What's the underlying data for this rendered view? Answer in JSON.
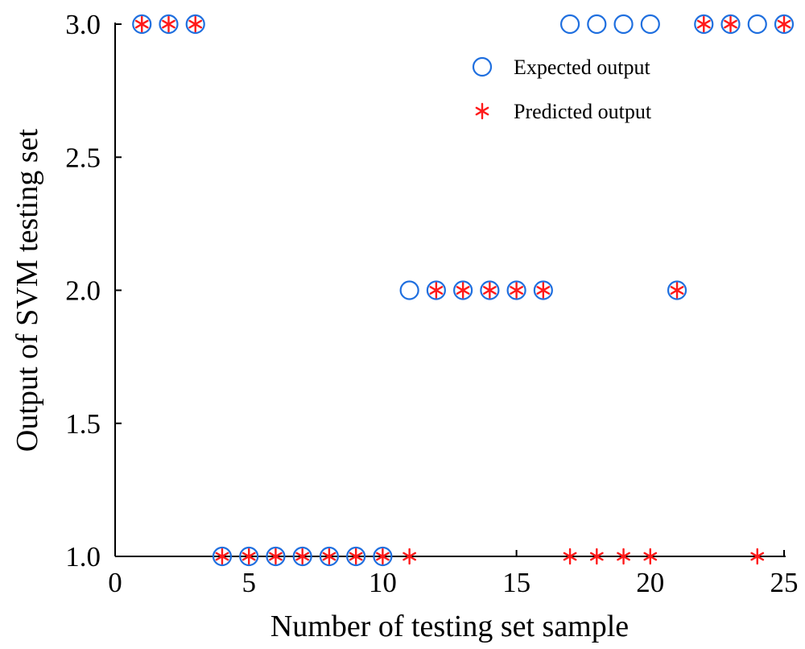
{
  "chart_data": {
    "type": "scatter",
    "xlabel": "Number of testing set sample",
    "ylabel": "Output of SVM testing set",
    "xlim": [
      0,
      25
    ],
    "ylim": [
      1.0,
      3.0
    ],
    "x_ticks": [
      0,
      5,
      10,
      15,
      20,
      25
    ],
    "x_tick_labels": [
      "0",
      "5",
      "10",
      "15",
      "20",
      "25"
    ],
    "y_ticks": [
      1.0,
      1.5,
      2.0,
      2.5,
      3.0
    ],
    "y_tick_labels": [
      "1.0",
      "1.5",
      "2.0",
      "2.5",
      "3.0"
    ],
    "grid": false,
    "legend_position": "top-right",
    "series": [
      {
        "name": "Expected output",
        "marker": "circle-open",
        "color": "#1f6fdf",
        "x": [
          1,
          2,
          3,
          4,
          5,
          6,
          7,
          8,
          9,
          10,
          11,
          12,
          13,
          14,
          15,
          16,
          17,
          18,
          19,
          20,
          21,
          22,
          23,
          24,
          25
        ],
        "y": [
          3,
          3,
          3,
          1,
          1,
          1,
          1,
          1,
          1,
          1,
          2,
          2,
          2,
          2,
          2,
          2,
          3,
          3,
          3,
          3,
          2,
          3,
          3,
          3,
          3
        ]
      },
      {
        "name": "Predicted output",
        "marker": "asterisk",
        "color": "#ff1a1a",
        "x": [
          1,
          2,
          3,
          4,
          5,
          6,
          7,
          8,
          9,
          10,
          11,
          12,
          13,
          14,
          15,
          16,
          17,
          18,
          19,
          20,
          21,
          22,
          23,
          24,
          25
        ],
        "y": [
          3,
          3,
          3,
          1,
          1,
          1,
          1,
          1,
          1,
          1,
          1,
          2,
          2,
          2,
          2,
          2,
          1,
          1,
          1,
          1,
          2,
          3,
          3,
          1,
          3
        ]
      }
    ]
  }
}
